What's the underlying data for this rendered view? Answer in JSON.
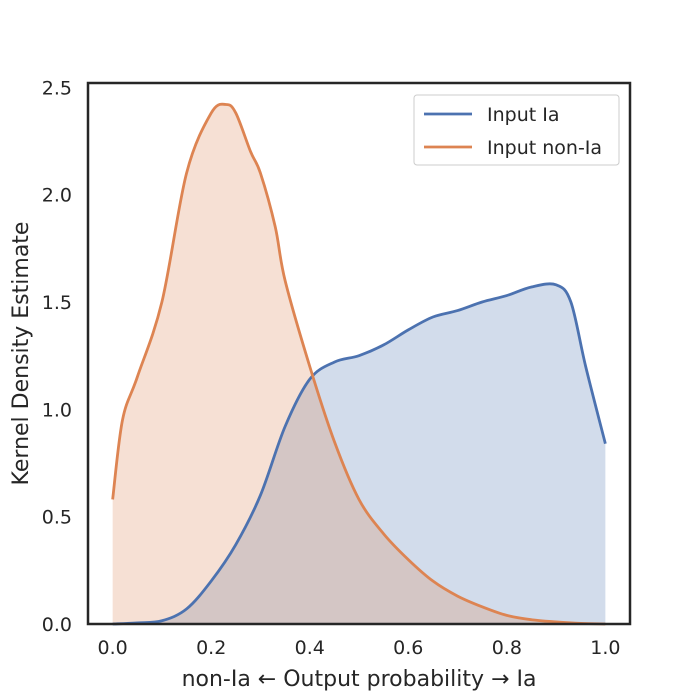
{
  "chart_data": {
    "type": "area",
    "title": "",
    "xlabel": "non-Ia ← Output probability → Ia",
    "ylabel": "Kernel Density Estimate",
    "xlim": [
      -0.05,
      1.05
    ],
    "ylim": [
      0,
      2.52
    ],
    "xticks": [
      0.0,
      0.2,
      0.4,
      0.6,
      0.8,
      1.0
    ],
    "xtick_labels": [
      "0.0",
      "0.2",
      "0.4",
      "0.6",
      "0.8",
      "1.0"
    ],
    "yticks": [
      0.0,
      0.5,
      1.0,
      1.5,
      2.0,
      2.5
    ],
    "ytick_labels": [
      "0.0",
      "0.5",
      "1.0",
      "1.5",
      "2.0",
      "2.5"
    ],
    "grid": false,
    "legend_position": "top-right",
    "series": [
      {
        "name": "Input Ia",
        "color": "#4C72B0",
        "fill_opacity": 0.25,
        "x": [
          0.0,
          0.05,
          0.1,
          0.15,
          0.2,
          0.25,
          0.3,
          0.35,
          0.4,
          0.45,
          0.5,
          0.55,
          0.6,
          0.65,
          0.7,
          0.75,
          0.8,
          0.85,
          0.9,
          0.93,
          0.96,
          1.0
        ],
        "y": [
          0.0,
          0.005,
          0.015,
          0.07,
          0.2,
          0.37,
          0.6,
          0.92,
          1.14,
          1.22,
          1.25,
          1.3,
          1.37,
          1.43,
          1.46,
          1.5,
          1.53,
          1.57,
          1.58,
          1.5,
          1.2,
          0.84
        ]
      },
      {
        "name": "Input non-Ia",
        "color": "#DD8452",
        "fill_opacity": 0.25,
        "x": [
          0.0,
          0.02,
          0.05,
          0.1,
          0.15,
          0.2,
          0.23,
          0.25,
          0.28,
          0.3,
          0.33,
          0.35,
          0.4,
          0.45,
          0.5,
          0.55,
          0.6,
          0.65,
          0.7,
          0.75,
          0.8,
          0.85,
          0.9,
          0.95,
          1.0
        ],
        "y": [
          0.58,
          0.95,
          1.15,
          1.5,
          2.1,
          2.38,
          2.42,
          2.38,
          2.2,
          2.1,
          1.85,
          1.6,
          1.2,
          0.85,
          0.58,
          0.42,
          0.3,
          0.2,
          0.13,
          0.08,
          0.04,
          0.02,
          0.01,
          0.003,
          0.0
        ]
      }
    ]
  }
}
